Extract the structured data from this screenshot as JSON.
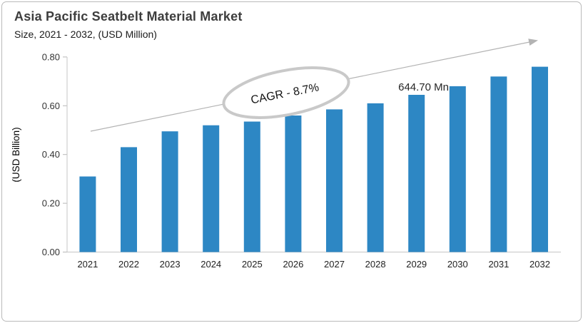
{
  "header": {
    "title": "Asia Pacific Seatbelt Material Market",
    "subtitle": "Size, 2021 - 2032, (USD Million)"
  },
  "chart_data": {
    "type": "bar",
    "title": "Asia Pacific Seatbelt Material Market",
    "subtitle": "Size, 2021 - 2032, (USD Million)",
    "categories": [
      "2021",
      "2022",
      "2023",
      "2024",
      "2025",
      "2026",
      "2027",
      "2028",
      "2029",
      "2030",
      "2031",
      "2032"
    ],
    "values": [
      0.31,
      0.43,
      0.495,
      0.52,
      0.535,
      0.56,
      0.585,
      0.61,
      0.6447,
      0.68,
      0.72,
      0.76
    ],
    "xlabel": "",
    "ylabel": "(USD Billion)",
    "ylim": [
      0.0,
      0.8
    ],
    "ytick_step": 0.2,
    "ytick_labels": [
      "0.00",
      "0.20",
      "0.40",
      "0.60",
      "0.80"
    ],
    "grid": false,
    "legend": false,
    "bar_color": "#2d87c4",
    "annotations": {
      "cagr_label": "CAGR - 8.7%",
      "point_label": {
        "text": "644.70 Mn",
        "category": "2029",
        "value_usd_mn": 644.7
      },
      "trend_arrow": "upward"
    }
  },
  "colors": {
    "bar": "#2d87c4",
    "axis": "#c6c6c6",
    "trend_arrow": "#b3b3b3",
    "ellipse_stroke": "#c9c9c9",
    "title_text": "#3d3d3d"
  }
}
